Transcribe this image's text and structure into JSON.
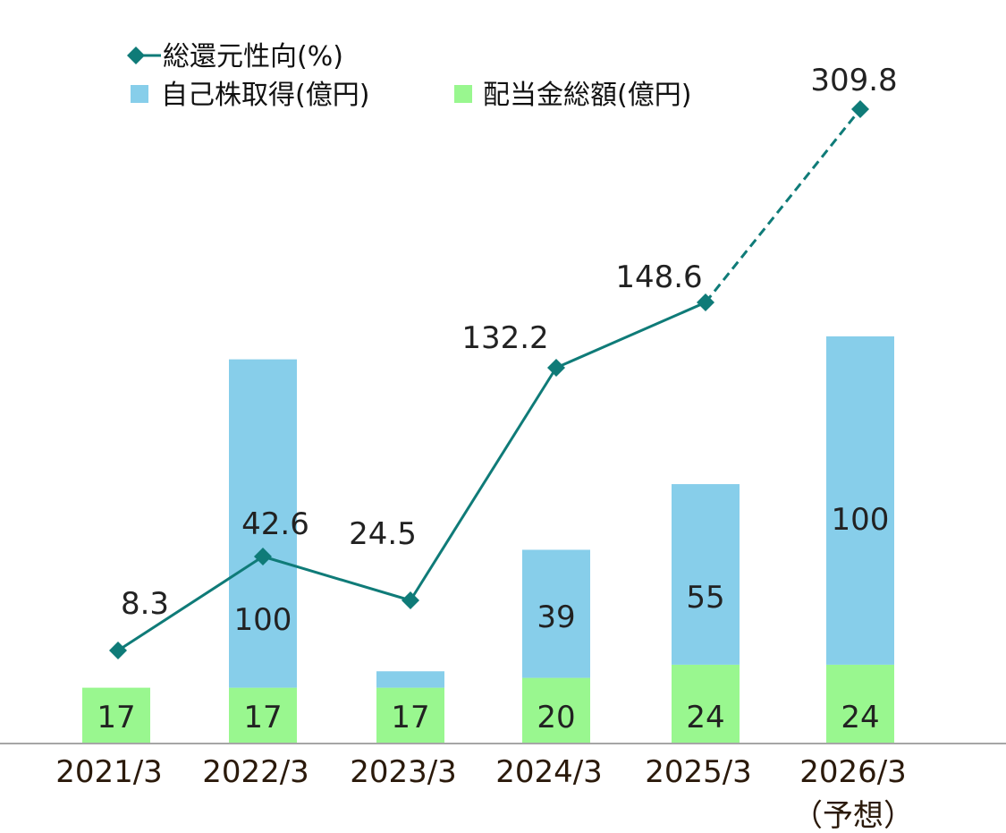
{
  "chart_data": {
    "type": "bar",
    "categories": [
      "2021/3",
      "2022/3",
      "2023/3",
      "2024/3",
      "2025/3",
      "2026/3"
    ],
    "category_sublabels": [
      "",
      "",
      "",
      "",
      "",
      "（予想）"
    ],
    "bar_series": [
      {
        "name": "配当金総額(億円)",
        "color": "#99f78f",
        "values": [
          17,
          17,
          17,
          20,
          24,
          24
        ],
        "labels": [
          "17",
          "17",
          "17",
          "20",
          "24",
          "24"
        ]
      },
      {
        "name": "自己株取得(億円)",
        "color": "#87ceea",
        "values": [
          0,
          100,
          5,
          39,
          55,
          100
        ],
        "labels": [
          "",
          "100",
          "",
          "39",
          "55",
          "100"
        ]
      }
    ],
    "line_series": {
      "name": "総還元性向(%)",
      "color": "#0f7b78",
      "values": [
        8.3,
        42.6,
        24.5,
        132.2,
        148.6,
        309.8
      ],
      "labels": [
        "8.3",
        "42.6",
        "24.5",
        "132.2",
        "148.6",
        "309.8"
      ],
      "forecast_from_index": 4
    },
    "legend": {
      "placement": "top-left",
      "items": [
        {
          "label": "総還元性向(%)",
          "marker": "diamond-line",
          "color": "#0f7b78"
        },
        {
          "label": "自己株取得(億円)",
          "marker": "square",
          "color": "#87ceea"
        },
        {
          "label": "配当金総額(億円)",
          "marker": "square",
          "color": "#99f78f"
        }
      ]
    },
    "bar_ylim": [
      0,
      233
    ],
    "line_ylim": [
      -40,
      360
    ],
    "axis_color": "#a6a6a6",
    "grid": false,
    "title": "",
    "xlabel": "",
    "ylabel": ""
  }
}
